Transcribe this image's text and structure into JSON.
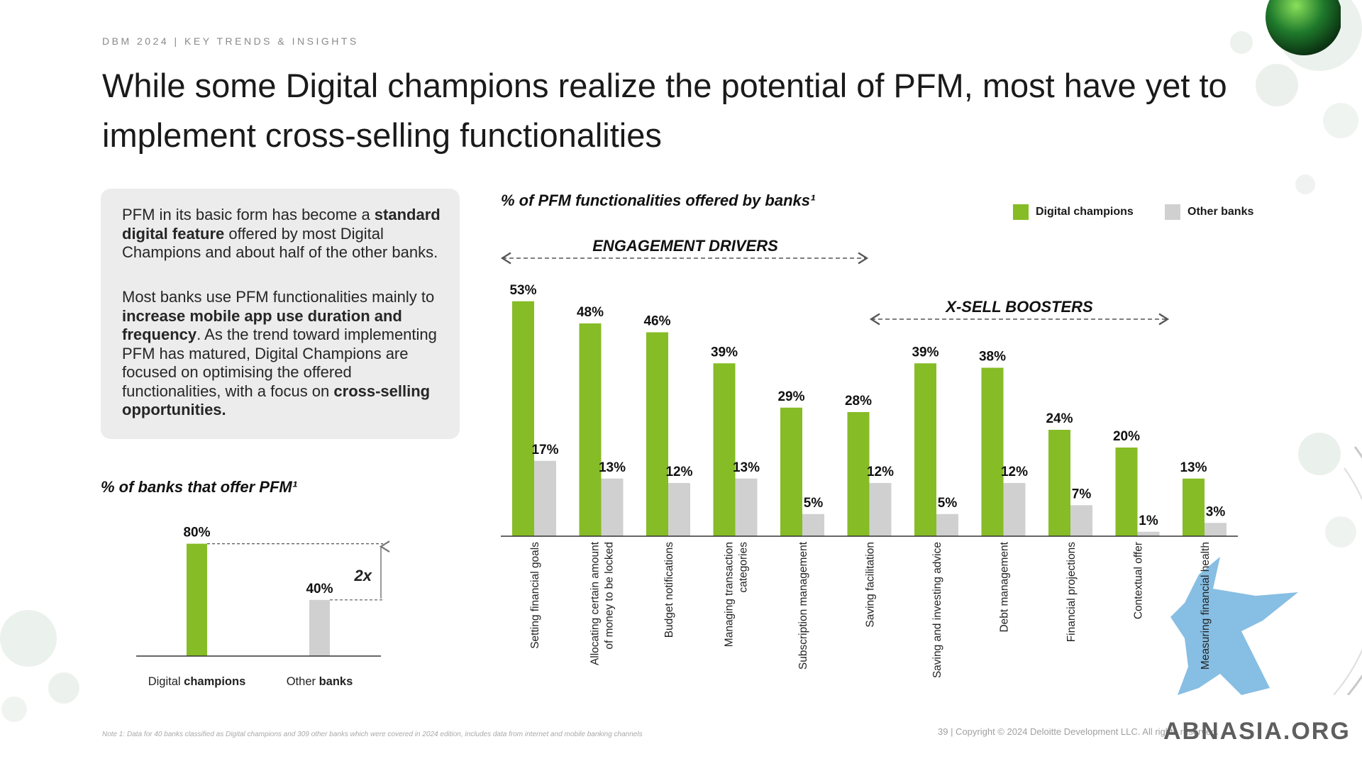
{
  "header": {
    "eyebrow": "DBM 2024 | KEY TRENDS & INSIGHTS",
    "title": "While some Digital champions realize the potential of PFM, most have yet to implement cross-selling functionalities"
  },
  "callout": {
    "p1_a": "PFM in its basic form has become a ",
    "p1_b": "standard digital feature",
    "p1_c": " offered by most Digital Champions and about half of the other banks.",
    "p2_a": "Most banks use PFM functionalities mainly to ",
    "p2_b": "increase mobile app use duration and frequency",
    "p2_c": ". As the trend toward implementing PFM has matured, Digital Champions are focused on optimising the offered functionalities, with a focus on ",
    "p2_d": "cross-selling opportunities."
  },
  "colors": {
    "green": "#86bc25",
    "grey": "#d0d0d0",
    "axis": "#333333"
  },
  "legend": {
    "digital": "Digital champions",
    "other": "Other banks"
  },
  "ranges": {
    "engagement": "ENGAGEMENT DRIVERS",
    "xsell": "X-SELL BOOSTERS"
  },
  "chart_data": [
    {
      "type": "bar",
      "title": "% of PFM functionalities offered by banks¹",
      "categories": [
        "Setting financial goals",
        "Allocating certain amount of money to be locked",
        "Budget notifications",
        "Managing transaction categories",
        "Subscription management",
        "Saving facilitation",
        "Saving and investing advice",
        "Debt management",
        "Financial projections",
        "Contextual offer",
        "Measuring financial health"
      ],
      "series": [
        {
          "name": "Digital champions",
          "values": [
            53,
            48,
            46,
            39,
            29,
            28,
            39,
            38,
            24,
            20,
            13
          ]
        },
        {
          "name": "Other banks",
          "values": [
            17,
            13,
            12,
            13,
            5,
            12,
            5,
            12,
            7,
            1,
            3
          ]
        }
      ],
      "value_labels": {
        "digital": [
          "53%",
          "48%",
          "46%",
          "39%",
          "29%",
          "28%",
          "39%",
          "38%",
          "24%",
          "20%",
          "13%"
        ],
        "other": [
          "17%",
          "13%",
          "12%",
          "13%",
          "5%",
          "12%",
          "5%",
          "12%",
          "7%",
          "1%",
          "3%"
        ]
      },
      "ylim": [
        0,
        60
      ],
      "legend": "top-right",
      "grid": false
    },
    {
      "type": "bar",
      "title": "% of banks that offer PFM¹",
      "categories": [
        {
          "pre": "Digital ",
          "bold": "champions"
        },
        {
          "pre": "Other ",
          "bold": "banks"
        }
      ],
      "values": [
        80,
        40
      ],
      "value_labels": [
        "80%",
        "40%"
      ],
      "annotation": "2x",
      "ylim": [
        0,
        80
      ],
      "grid": false
    }
  ],
  "footer": {
    "footnote": "Note 1: Data for 40 banks classified as Digital champions and 309 other banks which were covered in 2024 edition, includes data from internet and mobile banking channels",
    "copyright": "39 | Copyright © 2024 Deloitte Development LLC. All rights reserved.",
    "watermark": "ABNASIA.ORG"
  }
}
